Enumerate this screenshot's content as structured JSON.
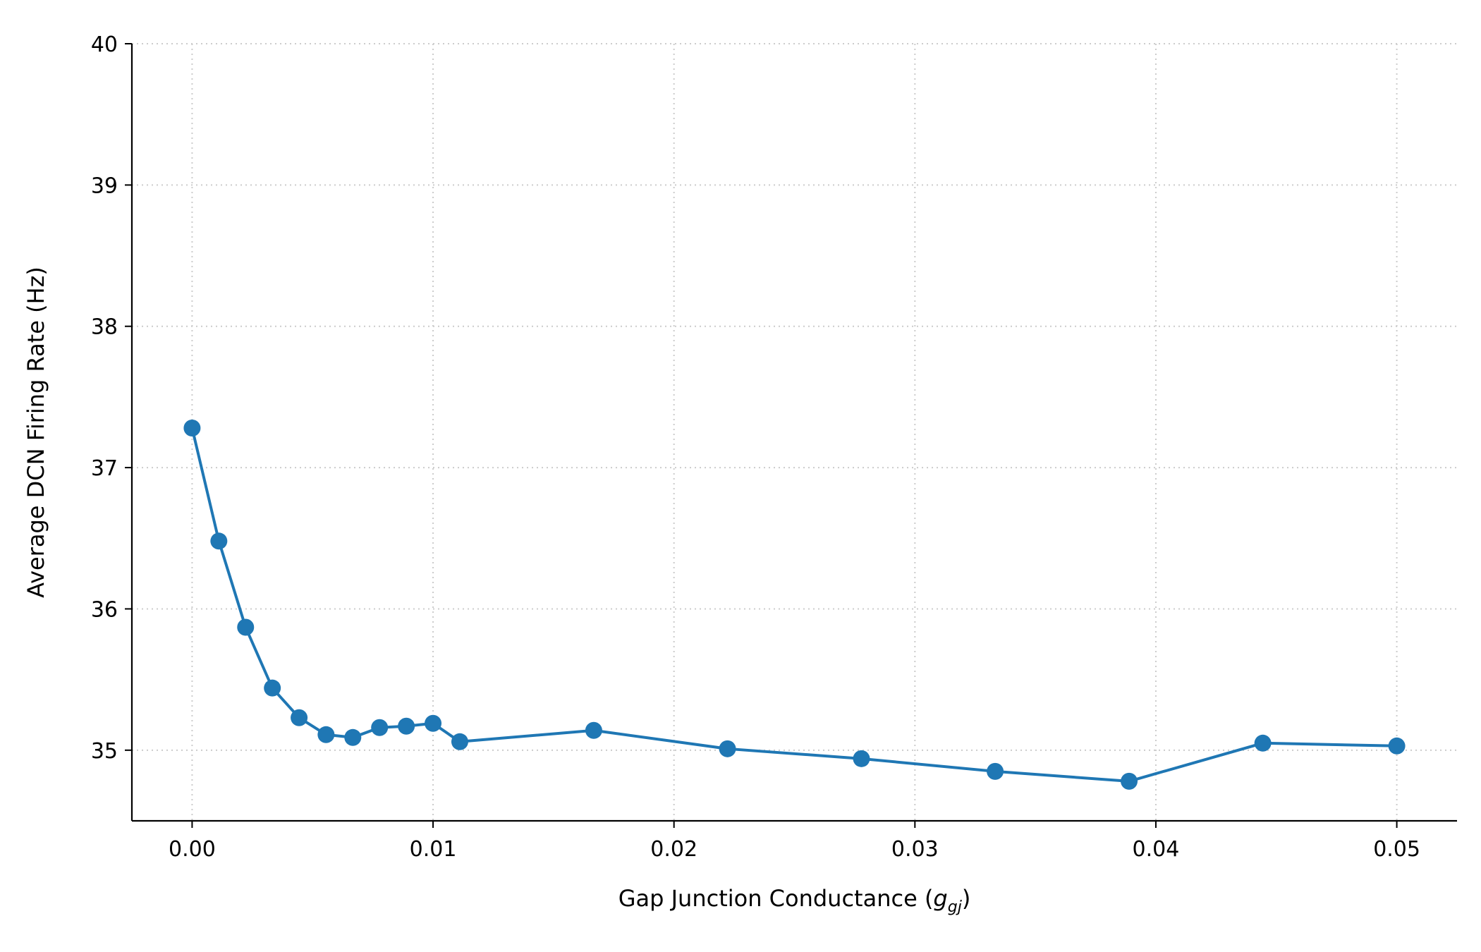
{
  "colors": {
    "series": "#1f77b4",
    "grid": "#cccccc",
    "axis": "#000000",
    "background": "#ffffff"
  },
  "chart_data": {
    "type": "line",
    "title": "",
    "xlabel_main": "Gap Junction Conductance (",
    "xlabel_symbol": "g",
    "xlabel_subscript": "gj",
    "xlabel_close": ")",
    "ylabel": "Average DCN Firing Rate (Hz)",
    "xlim": [
      -0.0025,
      0.0525
    ],
    "ylim": [
      34.5,
      40.0
    ],
    "xticks": [
      0.0,
      0.01,
      0.02,
      0.03,
      0.04,
      0.05
    ],
    "xtick_labels": [
      "0.00",
      "0.01",
      "0.02",
      "0.03",
      "0.04",
      "0.05"
    ],
    "yticks": [
      35,
      36,
      37,
      38,
      39,
      40
    ],
    "ytick_labels": [
      "35",
      "36",
      "37",
      "38",
      "39",
      "40"
    ],
    "grid": true,
    "marker": "circle",
    "series": [
      {
        "x": [
          0.0,
          0.00111,
          0.00222,
          0.00333,
          0.00444,
          0.00556,
          0.00667,
          0.00778,
          0.00889,
          0.01,
          0.01111,
          0.01667,
          0.02222,
          0.02778,
          0.03333,
          0.03889,
          0.04444,
          0.05
        ],
        "y": [
          37.28,
          36.48,
          35.87,
          35.44,
          35.23,
          35.11,
          35.09,
          35.16,
          35.17,
          35.19,
          35.06,
          35.14,
          35.01,
          34.94,
          34.85,
          34.78,
          35.05,
          35.03
        ]
      }
    ]
  }
}
